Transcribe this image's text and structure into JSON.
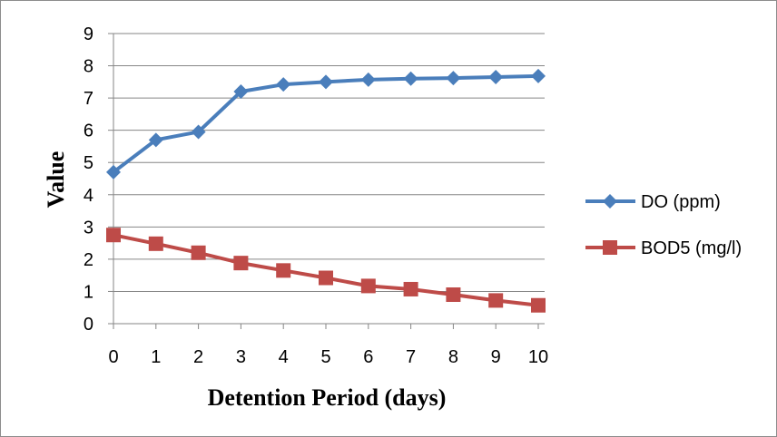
{
  "chart_data": {
    "type": "line",
    "xlabel": "Detention Period (days)",
    "ylabel": "Value",
    "x": [
      0,
      1,
      2,
      3,
      4,
      5,
      6,
      7,
      8,
      9,
      10
    ],
    "ylim": [
      0,
      9
    ],
    "yticks": [
      0,
      1,
      2,
      3,
      4,
      5,
      6,
      7,
      8,
      9
    ],
    "grid": "horizontal",
    "legend_position": "right",
    "series": [
      {
        "name": "DO (ppm)",
        "color": "#4a7ebb",
        "marker": "diamond",
        "values": [
          4.7,
          5.7,
          5.95,
          7.2,
          7.42,
          7.5,
          7.57,
          7.6,
          7.62,
          7.65,
          7.68
        ]
      },
      {
        "name": "BOD5 (mg/l)",
        "color": "#be4b48",
        "marker": "square",
        "values": [
          2.75,
          2.48,
          2.2,
          1.88,
          1.65,
          1.42,
          1.17,
          1.07,
          0.9,
          0.72,
          0.57
        ]
      }
    ]
  }
}
